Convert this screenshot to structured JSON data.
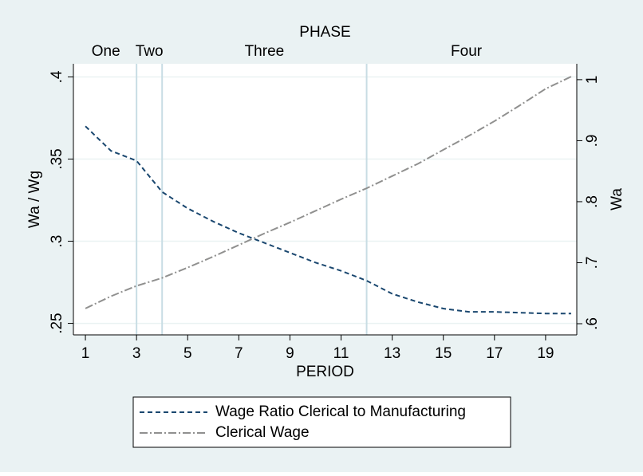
{
  "chart_data": {
    "type": "line",
    "top_axis_title": "PHASE",
    "top_ticks": [
      {
        "value": 1.8,
        "label": "One"
      },
      {
        "value": 3.5,
        "label": "Two"
      },
      {
        "value": 8,
        "label": "Three"
      },
      {
        "value": 15.9,
        "label": "Four"
      }
    ],
    "xlines": [
      3,
      4,
      12
    ],
    "xlabel": "PERIOD",
    "ylabel": "Wa / Wg",
    "y2label": "Wa",
    "x": [
      1,
      2,
      3,
      4,
      5,
      6,
      7,
      8,
      9,
      10,
      11,
      12,
      13,
      14,
      15,
      16,
      17,
      18,
      19,
      20
    ],
    "xlim": [
      0.53,
      20.22
    ],
    "xticks": [
      1,
      3,
      5,
      7,
      9,
      11,
      13,
      15,
      17,
      19
    ],
    "ylim": [
      0.243,
      0.408
    ],
    "yticks": [
      {
        "value": 0.25,
        "label": ".25"
      },
      {
        "value": 0.3,
        "label": ".3"
      },
      {
        "value": 0.35,
        "label": ".35"
      },
      {
        "value": 0.4,
        "label": ".4"
      }
    ],
    "y2lim": [
      0.5817,
      1.026
    ],
    "y2ticks": [
      {
        "value": 0.6,
        "label": ".6"
      },
      {
        "value": 0.7,
        "label": ".7"
      },
      {
        "value": 0.8,
        "label": ".8"
      },
      {
        "value": 0.9,
        "label": ".9"
      },
      1
    ],
    "grid": true,
    "series": [
      {
        "name": "Wage Ratio Clerical to Manufacturing",
        "color": "#1a476f",
        "dash": "6,4",
        "values": [
          0.37,
          0.355,
          0.349,
          0.33,
          0.32,
          0.312,
          0.305,
          0.299,
          0.293,
          0.287,
          0.282,
          0.276,
          0.268,
          0.263,
          0.259,
          0.257,
          0.257,
          0.2565,
          0.256,
          0.256
        ]
      },
      {
        "name": "Clerical Wage",
        "color": "#90908f",
        "dash": "10,3,2,3",
        "axis": "y2",
        "values": [
          0.625,
          0.645,
          0.662,
          0.675,
          0.692,
          0.71,
          0.729,
          0.748,
          0.766,
          0.785,
          0.804,
          0.822,
          0.842,
          0.862,
          0.885,
          0.908,
          0.932,
          0.958,
          0.985,
          1.005
        ]
      }
    ]
  }
}
